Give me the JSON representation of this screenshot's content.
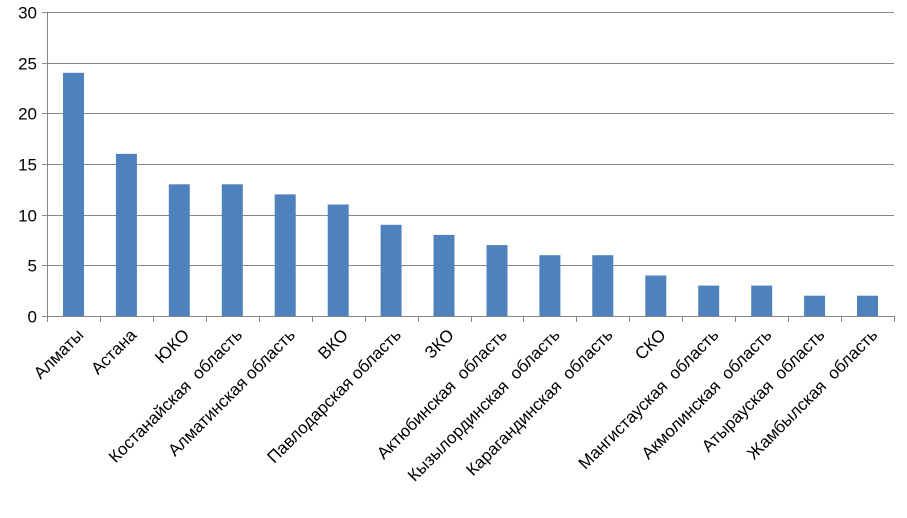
{
  "chart_data": {
    "type": "bar",
    "title": "",
    "xlabel": "",
    "ylabel": "",
    "ylim": [
      0,
      30
    ],
    "yticks": [
      0,
      5,
      10,
      15,
      20,
      25,
      30
    ],
    "grid": true,
    "legend": "none",
    "categories": [
      "Алматы",
      "Астана",
      "ЮКО",
      "Костанайская  область",
      "Алматинская область",
      "ВКО",
      "Павлодарская область",
      "ЗКО",
      "Актюбинская  область",
      "Кызылординская  область",
      "Карагандинская  область",
      "СКО",
      "Мангистауская  область",
      "Акмолинская  область",
      "Атырауская  область",
      "Жамбылская  область"
    ],
    "values": [
      24,
      16,
      13,
      13,
      12,
      11,
      9,
      8,
      7,
      6,
      6,
      4,
      3,
      3,
      2,
      2
    ],
    "colors": {
      "bar": "#4F81BD",
      "grid": "#888888",
      "axis": "#888888"
    }
  }
}
